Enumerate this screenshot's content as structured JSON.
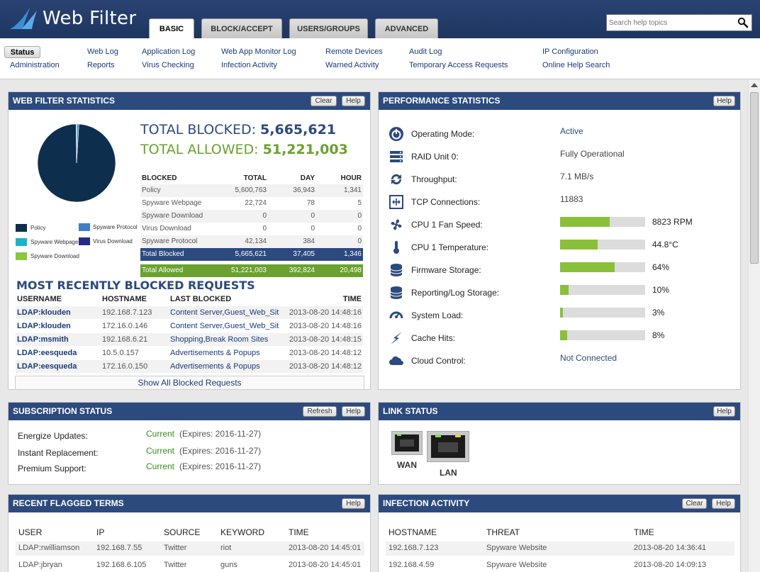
{
  "app": {
    "title": "Web Filter"
  },
  "tabs": [
    {
      "label": "BASIC"
    },
    {
      "label": "BLOCK/ACCEPT"
    },
    {
      "label": "USERS/GROUPS"
    },
    {
      "label": "ADVANCED"
    }
  ],
  "search": {
    "placeholder": "Search help topics"
  },
  "subnav": {
    "status": "Status",
    "administration": "Administration",
    "web_log": "Web Log",
    "reports": "Reports",
    "application_log": "Application Log",
    "virus_checking": "Virus Checking",
    "web_app_monitor_log": "Web App Monitor Log",
    "infection_activity": "Infection Activity",
    "remote_devices": "Remote Devices",
    "warned_activity": "Warned Activity",
    "audit_log": "Audit Log",
    "temporary_access_requests": "Temporary Access Requests",
    "ip_configuration": "IP Configuration",
    "online_help_search": "Online Help Search"
  },
  "buttons": {
    "clear": "Clear",
    "help": "Help",
    "refresh": "Refresh"
  },
  "web_filter_stats": {
    "title": "WEB FILTER STATISTICS",
    "total_blocked_label": "TOTAL BLOCKED:",
    "total_blocked_value": "5,665,621",
    "total_allowed_label": "TOTAL ALLOWED:",
    "total_allowed_value": "51,221,003",
    "table_headers": [
      "BLOCKED",
      "TOTAL",
      "DAY",
      "HOUR"
    ],
    "rows": [
      {
        "name": "Policy",
        "total": "5,600,763",
        "day": "36,943",
        "hour": "1,341"
      },
      {
        "name": "Spyware Webpage",
        "total": "22,724",
        "day": "78",
        "hour": "5"
      },
      {
        "name": "Spyware Download",
        "total": "0",
        "day": "0",
        "hour": "0"
      },
      {
        "name": "Virus Download",
        "total": "0",
        "day": "0",
        "hour": "0"
      },
      {
        "name": "Spyware Protocol",
        "total": "42,134",
        "day": "384",
        "hour": "0"
      }
    ],
    "total_blocked_row": {
      "name": "Total Blocked",
      "total": "5,665,621",
      "day": "37,405",
      "hour": "1,346"
    },
    "total_allowed_row": {
      "name": "Total Allowed",
      "total": "51,221,003",
      "day": "392,824",
      "hour": "20,498"
    },
    "legend": [
      {
        "label": "Policy",
        "color": "#0e2e4e"
      },
      {
        "label": "Spyware Protocol",
        "color": "#3f7fc4"
      },
      {
        "label": "Spyware Webpage",
        "color": "#19b4cc"
      },
      {
        "label": "Virus Download",
        "color": "#2a2a8a"
      },
      {
        "label": "Spyware Download",
        "color": "#8cc63f"
      }
    ],
    "pie": {
      "values": [
        5600763,
        22724,
        0,
        0,
        42134
      ],
      "colors": [
        "#0e2e4e",
        "#19b4cc",
        "#8cc63f",
        "#2a2a8a",
        "#3f7fc4"
      ]
    }
  },
  "recent_blocked": {
    "title": "MOST RECENTLY BLOCKED REQUESTS",
    "headers": [
      "USERNAME",
      "HOSTNAME",
      "LAST BLOCKED",
      "TIME"
    ],
    "rows": [
      {
        "user": "LDAP:klouden",
        "host": "192.168.7.123",
        "last": "Content Server,Guest_Web_Sit",
        "time": "2013-08-20 14:48:16"
      },
      {
        "user": "LDAP:klouden",
        "host": "172.16.0.146",
        "last": "Content Server,Guest_Web_Sit",
        "time": "2013-08-20 14:48:16"
      },
      {
        "user": "LDAP:msmith",
        "host": "192.168.6.21",
        "last": "Shopping,Break Room Sites",
        "time": "2013-08-20 14:48:15"
      },
      {
        "user": "LDAP:eesqueda",
        "host": "10.5.0.157",
        "last": "Advertisements & Popups",
        "time": "2013-08-20 14:48:12"
      },
      {
        "user": "LDAP:eesqueda",
        "host": "172.16.0.150",
        "last": "Advertisements & Popups",
        "time": "2013-08-20 14:48:12"
      }
    ],
    "show_all": "Show All Blocked Requests"
  },
  "performance": {
    "title": "PERFORMANCE STATISTICS",
    "rows": [
      {
        "label": "Operating Mode:",
        "value": "Active",
        "icon": "power-icon"
      },
      {
        "label": "RAID Unit 0:",
        "value": "Fully Operational",
        "icon": "raid-icon"
      },
      {
        "label": "Throughput:",
        "value": "7.1 MB/s",
        "icon": "throughput-icon"
      },
      {
        "label": "TCP Connections:",
        "value": "11883",
        "icon": "connections-icon"
      },
      {
        "label": "CPU 1 Fan Speed:",
        "value": "8823 RPM",
        "percent": 58,
        "icon": "fan-icon"
      },
      {
        "label": "CPU 1 Temperature:",
        "value": "44.8°C",
        "percent": 44,
        "icon": "thermometer-icon"
      },
      {
        "label": "Firmware Storage:",
        "value": "64%",
        "percent": 64,
        "icon": "storage-icon"
      },
      {
        "label": "Reporting/Log Storage:",
        "value": "10%",
        "percent": 10,
        "icon": "storage-icon"
      },
      {
        "label": "System Load:",
        "value": "3%",
        "percent": 3,
        "icon": "gauge-icon"
      },
      {
        "label": "Cache Hits:",
        "value": "8%",
        "percent": 8,
        "icon": "lightning-icon"
      },
      {
        "label": "Cloud Control:",
        "value": "Not Connected",
        "icon": "cloud-icon"
      }
    ]
  },
  "subscription": {
    "title": "SUBSCRIPTION STATUS",
    "rows": [
      {
        "label": "Energize Updates:",
        "status": "Current",
        "expires": "(Expires: 2016-11-27)"
      },
      {
        "label": "Instant Replacement:",
        "status": "Current",
        "expires": "(Expires: 2016-11-27)"
      },
      {
        "label": "Premium Support:",
        "status": "Current",
        "expires": "(Expires: 2016-11-27)"
      }
    ]
  },
  "link_status": {
    "title": "LINK STATUS",
    "wan": "WAN",
    "lan": "LAN"
  },
  "flagged": {
    "title": "RECENT FLAGGED TERMS",
    "headers": [
      "USER",
      "IP",
      "SOURCE",
      "KEYWORD",
      "TIME"
    ],
    "rows": [
      {
        "user": "LDAP:rwilliamson",
        "ip": "192.168.7.55",
        "source": "Twitter",
        "keyword": "riot",
        "time": "2013-08-20 14:45:01"
      },
      {
        "user": "LDAP:jbryan",
        "ip": "192.168.6.105",
        "source": "Twitter",
        "keyword": "guns",
        "time": "2013-08-20 14:45:01"
      }
    ]
  },
  "infection": {
    "title": "INFECTION ACTIVITY",
    "headers": [
      "HOSTNAME",
      "THREAT",
      "TIME"
    ],
    "rows": [
      {
        "host": "192.168.7.123",
        "threat": "Spyware Website",
        "time": "2013-08-20 14:36:41"
      },
      {
        "host": "192.168.4.59",
        "threat": "Spyware Website",
        "time": "2013-08-20 14:09:13"
      }
    ]
  }
}
